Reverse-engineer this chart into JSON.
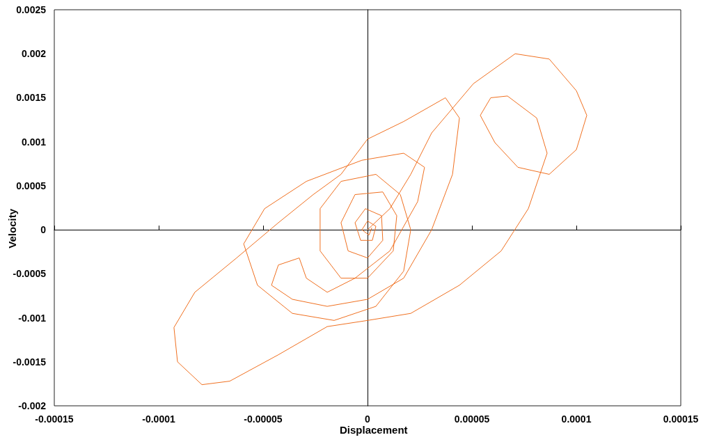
{
  "chart_data": {
    "type": "line",
    "xlabel": "Displacement",
    "ylabel": "Velocity",
    "xlim": [
      -0.00015,
      0.00015
    ],
    "xticks": [
      -0.00015,
      -0.0001,
      {
        "value": -5e-05,
        "label": "-0.00005"
      },
      0,
      {
        "value": 5e-05,
        "label": "0.00005"
      },
      0.0001,
      0.00015
    ],
    "ylim": [
      -0.002,
      0.0025
    ],
    "yticks": [
      -0.002,
      -0.0015,
      -0.001,
      -0.0005,
      0,
      0.0005,
      0.001,
      0.0015,
      0.002,
      0.0025
    ],
    "marker": "none",
    "line_style": "solid",
    "series": [
      {
        "color": "#f07020",
        "x": [
          0,
          1.07e-05,
          2.07e-05,
          3.07e-05,
          5.07e-05,
          7.07e-05,
          8.7e-05,
          0.0001,
          0.000105,
          0.0001,
          8.7e-05,
          7.2e-05,
          6.1e-05,
          5.4e-05,
          5.9e-05,
          6.7e-05,
          8.1e-05,
          8.6e-05,
          7.7e-05,
          6.4e-05,
          4.4e-05,
          2.07e-05,
          0,
          -1.93e-05,
          -4.27e-05,
          -6.6e-05,
          -7.93e-05,
          -9.1e-05,
          -9.27e-05,
          -8.27e-05,
          -6.27e-05,
          -4.27e-05,
          -2.6e-05,
          -1.27e-05,
          0,
          1.73e-05,
          3.73e-05,
          4.4e-05,
          4.07e-05,
          3.07e-05,
          1.73e-05,
          0,
          -1.93e-05,
          -3.6e-05,
          -4.6e-05,
          -4.27e-05,
          -3.27e-05,
          -2.93e-05,
          -1.93e-05,
          -6e-06,
          1.07e-05,
          2.4e-05,
          2.73e-05,
          1.73e-05,
          -2.7e-06,
          -2.93e-05,
          -4.93e-05,
          -5.93e-05,
          -5.27e-05,
          -3.6e-05,
          -1.6e-05,
          4e-06,
          1.73e-05,
          2.07e-05,
          1.57e-05,
          4e-06,
          -1.27e-05,
          -2.27e-05,
          -2.27e-05,
          -1.27e-05,
          0,
          1.23e-05,
          1.4e-05,
          7.3e-06,
          -6e-06,
          -1.27e-05,
          -9.3e-06,
          0,
          7.3e-06,
          6.7e-06,
          -1e-06,
          -6e-06,
          -3.3e-06,
          2.3e-06,
          4e-06,
          0,
          -2.7e-06,
          7e-07,
          2e-06
        ],
        "values": [
          0,
          0.00024,
          0.00063,
          0.0011,
          0.00166,
          0.002,
          0.00194,
          0.00158,
          0.0013,
          0.00091,
          0.00063,
          0.00071,
          0.00099,
          0.0013,
          0.0015,
          0.00152,
          0.00127,
          0.00087,
          0.00024,
          -0.00024,
          -0.00063,
          -0.00095,
          -0.00103,
          -0.0011,
          -0.00142,
          -0.00172,
          -0.00176,
          -0.0015,
          -0.00111,
          -0.00071,
          -0.00032,
          8e-05,
          0.0004,
          0.00063,
          0.00103,
          0.00123,
          0.0015,
          0.00127,
          0.00063,
          0,
          -0.00055,
          -0.00079,
          -0.00087,
          -0.00079,
          -0.00063,
          -0.0004,
          -0.00032,
          -0.00055,
          -0.00071,
          -0.00055,
          -0.00024,
          0.00032,
          0.00071,
          0.00087,
          0.00079,
          0.00055,
          0.00024,
          -0.00016,
          -0.00063,
          -0.00095,
          -0.00103,
          -0.00087,
          -0.00047,
          0,
          0.0004,
          0.00063,
          0.00055,
          0.00024,
          -0.00024,
          -0.00055,
          -0.00055,
          -0.00024,
          0.00016,
          0.00043,
          0.0004,
          8e-05,
          -0.00024,
          -0.00032,
          -0.00012,
          0.00016,
          0.00024,
          8e-05,
          -0.00012,
          -0.00012,
          4e-05,
          0.0001,
          0,
          -6e-05,
          2e-05
        ]
      }
    ]
  }
}
